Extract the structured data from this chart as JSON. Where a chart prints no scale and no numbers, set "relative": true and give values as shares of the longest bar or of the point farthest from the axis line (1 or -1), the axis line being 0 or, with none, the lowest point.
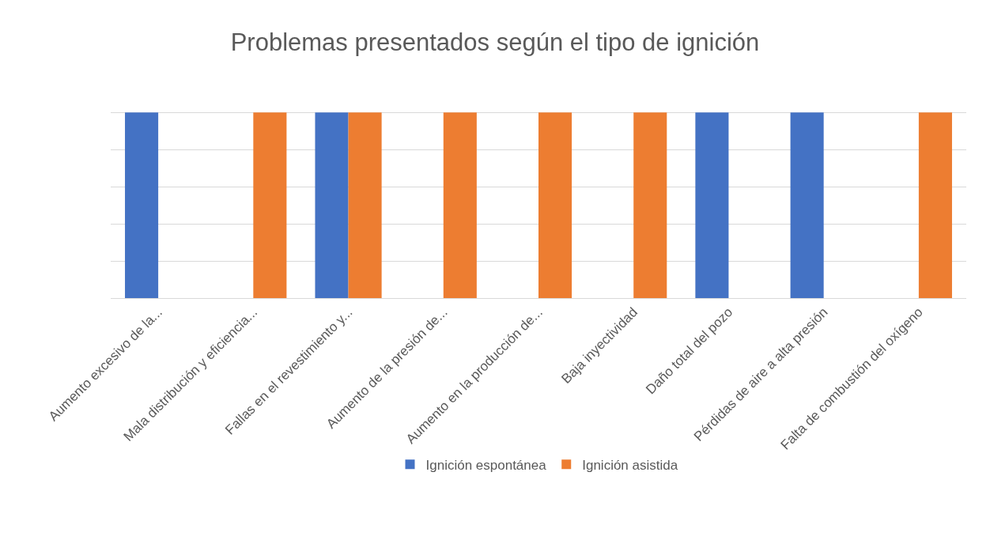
{
  "chart_data": {
    "type": "bar",
    "title": "Problemas presentados según el tipo de ignición",
    "relative": true,
    "grid": true,
    "legend": "bottom",
    "categories": [
      "Aumento excesivo de la...",
      "Mala distribución y eficiencia...",
      "Fallas en el revestimiento y...",
      "Aumento de la presión de...",
      "Aumento en la producción de...",
      "Baja inyectividad",
      "Daño total del pozo",
      "Pérdidas de aire a alta presión",
      "Falta de combustión del oxígeno"
    ],
    "series": [
      {
        "name": "Ignición espontánea",
        "color": "#4472c4",
        "values": [
          1,
          null,
          1,
          null,
          null,
          null,
          1,
          1,
          null
        ]
      },
      {
        "name": "Ignición asistida",
        "color": "#ed7d31",
        "values": [
          null,
          1,
          1,
          1,
          1,
          1,
          null,
          null,
          1
        ]
      }
    ]
  }
}
